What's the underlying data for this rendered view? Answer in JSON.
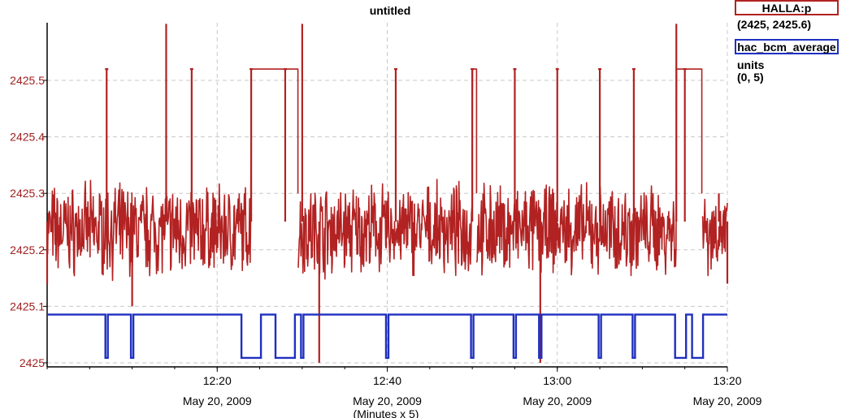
{
  "chart_data": {
    "type": "line",
    "title": "untitled",
    "xlabel": "(Minutes x 5)",
    "x_ticks": [
      {
        "time": "12:20",
        "date": "May 20, 2009"
      },
      {
        "time": "12:40",
        "date": "May 20, 2009"
      },
      {
        "time": "13:00",
        "date": "May 20, 2009"
      },
      {
        "time": "13:20",
        "date": "May 20, 2009"
      }
    ],
    "xlim": [
      "12:00",
      "13:20"
    ],
    "y_ticks": [
      "2425",
      "2425.1",
      "2425.2",
      "2425.3",
      "2425.4",
      "2425.5"
    ],
    "ylim": [
      2425,
      2425.6
    ],
    "grid": true,
    "legend_placement": "top-right",
    "series": [
      {
        "name": "HALLA:p",
        "range": "(2425, 2425.6)",
        "color": "#b22222",
        "noise_center": 2425.235,
        "x": [
          "12:00",
          "12:07",
          "12:10",
          "12:14",
          "12:17",
          "12:24",
          "12:28",
          "12:30",
          "12:32",
          "12:33",
          "12:41",
          "12:50",
          "12:55",
          "12:58",
          "13:00",
          "13:05",
          "13:09",
          "13:14",
          "13:15",
          "13:19",
          "13:20"
        ],
        "y": [
          2425.14,
          2425.52,
          2425.1,
          2425.6,
          2425.52,
          2425.52,
          2425.52,
          2425.6,
          2425.0,
          2425.2,
          2425.52,
          2425.52,
          2425.52,
          2425.0,
          2425.52,
          2425.52,
          2425.52,
          2425.6,
          2425.52,
          2425.3,
          2425.14
        ]
      },
      {
        "name": "hac_bcm_average",
        "units": "units",
        "range": "(0, 5)",
        "color": "#1f2fbf",
        "baseline": 4.85,
        "low": 0.5,
        "dips": [
          {
            "start": "12:07",
            "end": "12:07"
          },
          {
            "start": "12:10",
            "end": "12:10"
          },
          {
            "start": "12:23",
            "end": "12:25"
          },
          {
            "start": "12:27",
            "end": "12:29"
          },
          {
            "start": "12:30",
            "end": "12:30"
          },
          {
            "start": "12:40",
            "end": "12:40"
          },
          {
            "start": "12:50",
            "end": "12:50"
          },
          {
            "start": "12:55",
            "end": "12:55"
          },
          {
            "start": "12:58",
            "end": "12:58"
          },
          {
            "start": "13:05",
            "end": "13:05"
          },
          {
            "start": "13:09",
            "end": "13:09"
          },
          {
            "start": "13:14",
            "end": "13:15"
          },
          {
            "start": "13:16",
            "end": "13:17"
          }
        ]
      }
    ]
  }
}
